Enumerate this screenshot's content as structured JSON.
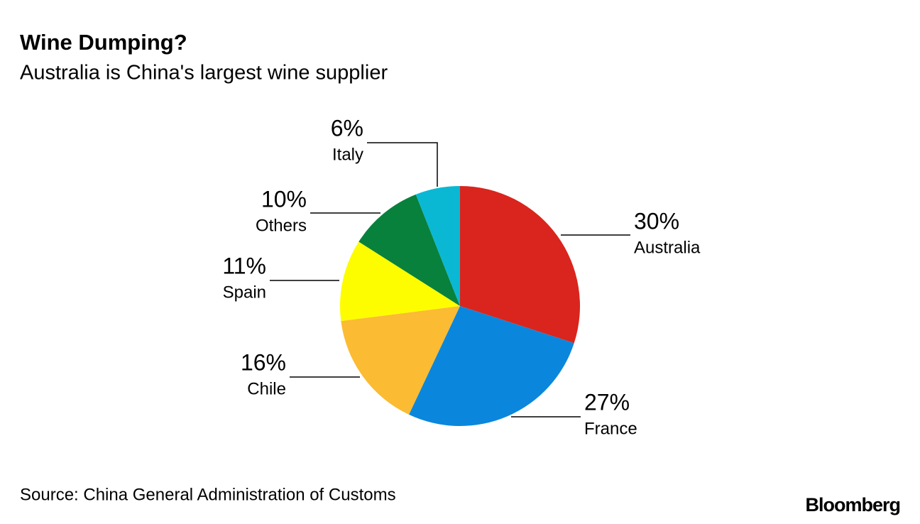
{
  "chart_data": {
    "type": "pie",
    "title": "Wine Dumping?",
    "subtitle": "Australia is China's largest wine supplier",
    "categories": [
      "Australia",
      "France",
      "Chile",
      "Spain",
      "Others",
      "Italy"
    ],
    "values": [
      30,
      27,
      16,
      11,
      10,
      6
    ],
    "value_labels": [
      "30%",
      "27%",
      "16%",
      "11%",
      "10%",
      "6%"
    ],
    "colors": [
      "#d9251d",
      "#0a87dc",
      "#fbbb33",
      "#fdfd00",
      "#08813c",
      "#0ab8d4"
    ],
    "source": "Source: China General Administration of Customs",
    "brand": "Bloomberg"
  }
}
